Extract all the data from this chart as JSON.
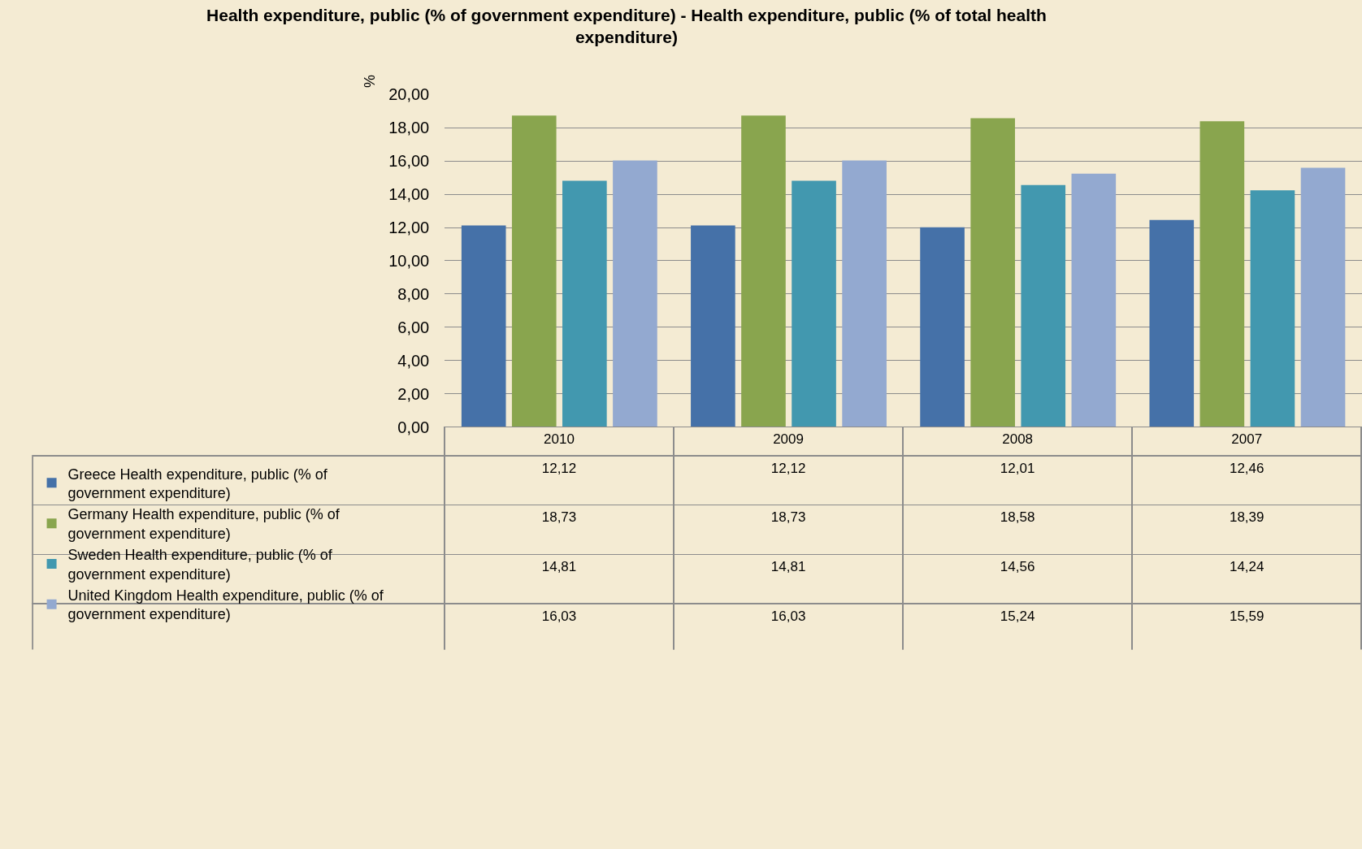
{
  "chart_data": {
    "type": "bar",
    "title": "Health expenditure, public (% of government expenditure) - Health expenditure, public (% of total health expenditure)",
    "ylabel": "%",
    "categories": [
      "2010",
      "2009",
      "2008",
      "2007"
    ],
    "series": [
      {
        "name": "Greece Health expenditure, public (% of government expenditure)",
        "color": "#4571a8",
        "values": [
          12.12,
          12.12,
          12.01,
          12.46
        ],
        "value_labels": [
          "12,12",
          "12,12",
          "12,01",
          "12,46"
        ]
      },
      {
        "name": "Germany Health expenditure, public (% of government expenditure)",
        "color": "#89a54e",
        "values": [
          18.73,
          18.73,
          18.58,
          18.39
        ],
        "value_labels": [
          "18,73",
          "18,73",
          "18,58",
          "18,39"
        ]
      },
      {
        "name": "Sweden Health expenditure, public (% of government expenditure)",
        "color": "#4298af",
        "values": [
          14.81,
          14.81,
          14.56,
          14.24
        ],
        "value_labels": [
          "14,81",
          "14,81",
          "14,56",
          "14,24"
        ]
      },
      {
        "name": "United Kingdom Health expenditure, public (% of government expenditure)",
        "color": "#93a9d0",
        "values": [
          16.03,
          16.03,
          15.24,
          15.59
        ],
        "value_labels": [
          "16,03",
          "16,03",
          "15,24",
          "15,59"
        ]
      }
    ],
    "ylim": [
      0,
      20
    ],
    "yticks": [
      {
        "value": 0,
        "label": "0,00"
      },
      {
        "value": 2,
        "label": "2,00"
      },
      {
        "value": 4,
        "label": "4,00"
      },
      {
        "value": 6,
        "label": "6,00"
      },
      {
        "value": 8,
        "label": "8,00"
      },
      {
        "value": 10,
        "label": "10,00"
      },
      {
        "value": 12,
        "label": "12,00"
      },
      {
        "value": 14,
        "label": "14,00"
      },
      {
        "value": 16,
        "label": "16,00"
      },
      {
        "value": 18,
        "label": "18,00"
      },
      {
        "value": 20,
        "label": "20,00"
      }
    ],
    "grid": "y",
    "legend": "bottom left"
  }
}
